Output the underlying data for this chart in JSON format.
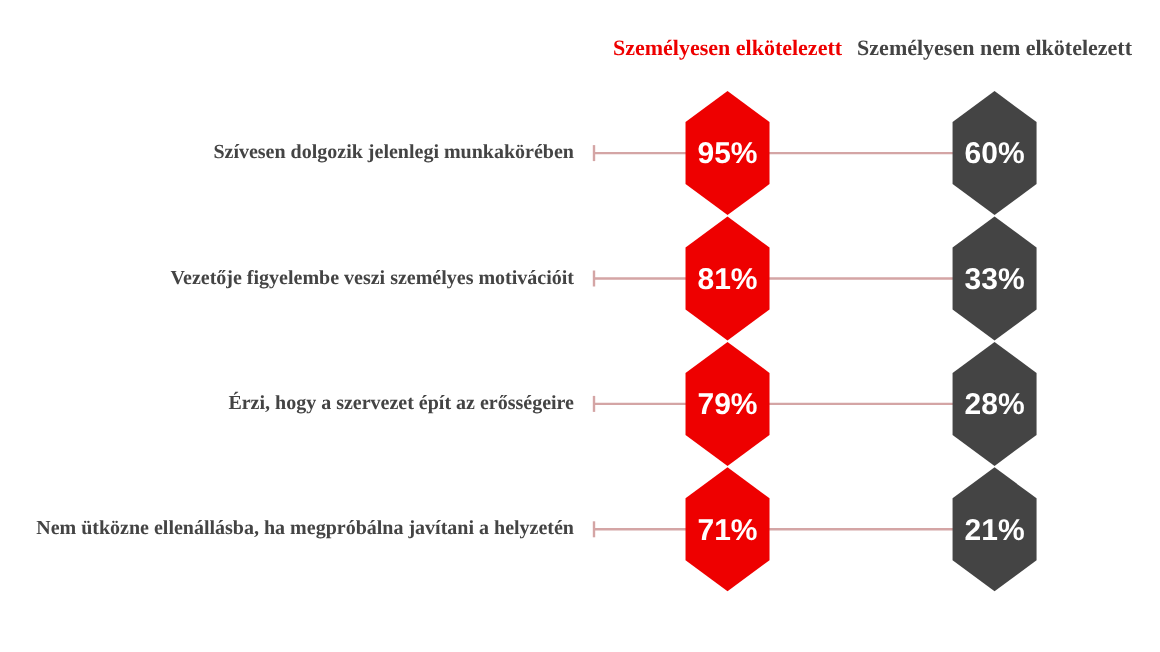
{
  "chart_data": {
    "type": "other",
    "categories": [
      "Szívesen dolgozik jelenlegi munkakörében",
      "Vezetője figyelembe veszi személyes motivációit",
      "Érzi, hogy a szervezet épít az erősségeire",
      "Nem ütközne ellenállásba, ha megpróbálna javítani a helyzetén"
    ],
    "series": [
      {
        "name": "Személyesen elkötelezett",
        "color": "#ee0000",
        "values": [
          95,
          81,
          79,
          71
        ],
        "value_labels": [
          "95%",
          "81%",
          "79%",
          "71%"
        ]
      },
      {
        "name": "Személyesen nem elkötelezett",
        "color": "#444444",
        "values": [
          60,
          33,
          28,
          21
        ],
        "value_labels": [
          "60%",
          "33%",
          "28%",
          "21%"
        ]
      }
    ]
  }
}
